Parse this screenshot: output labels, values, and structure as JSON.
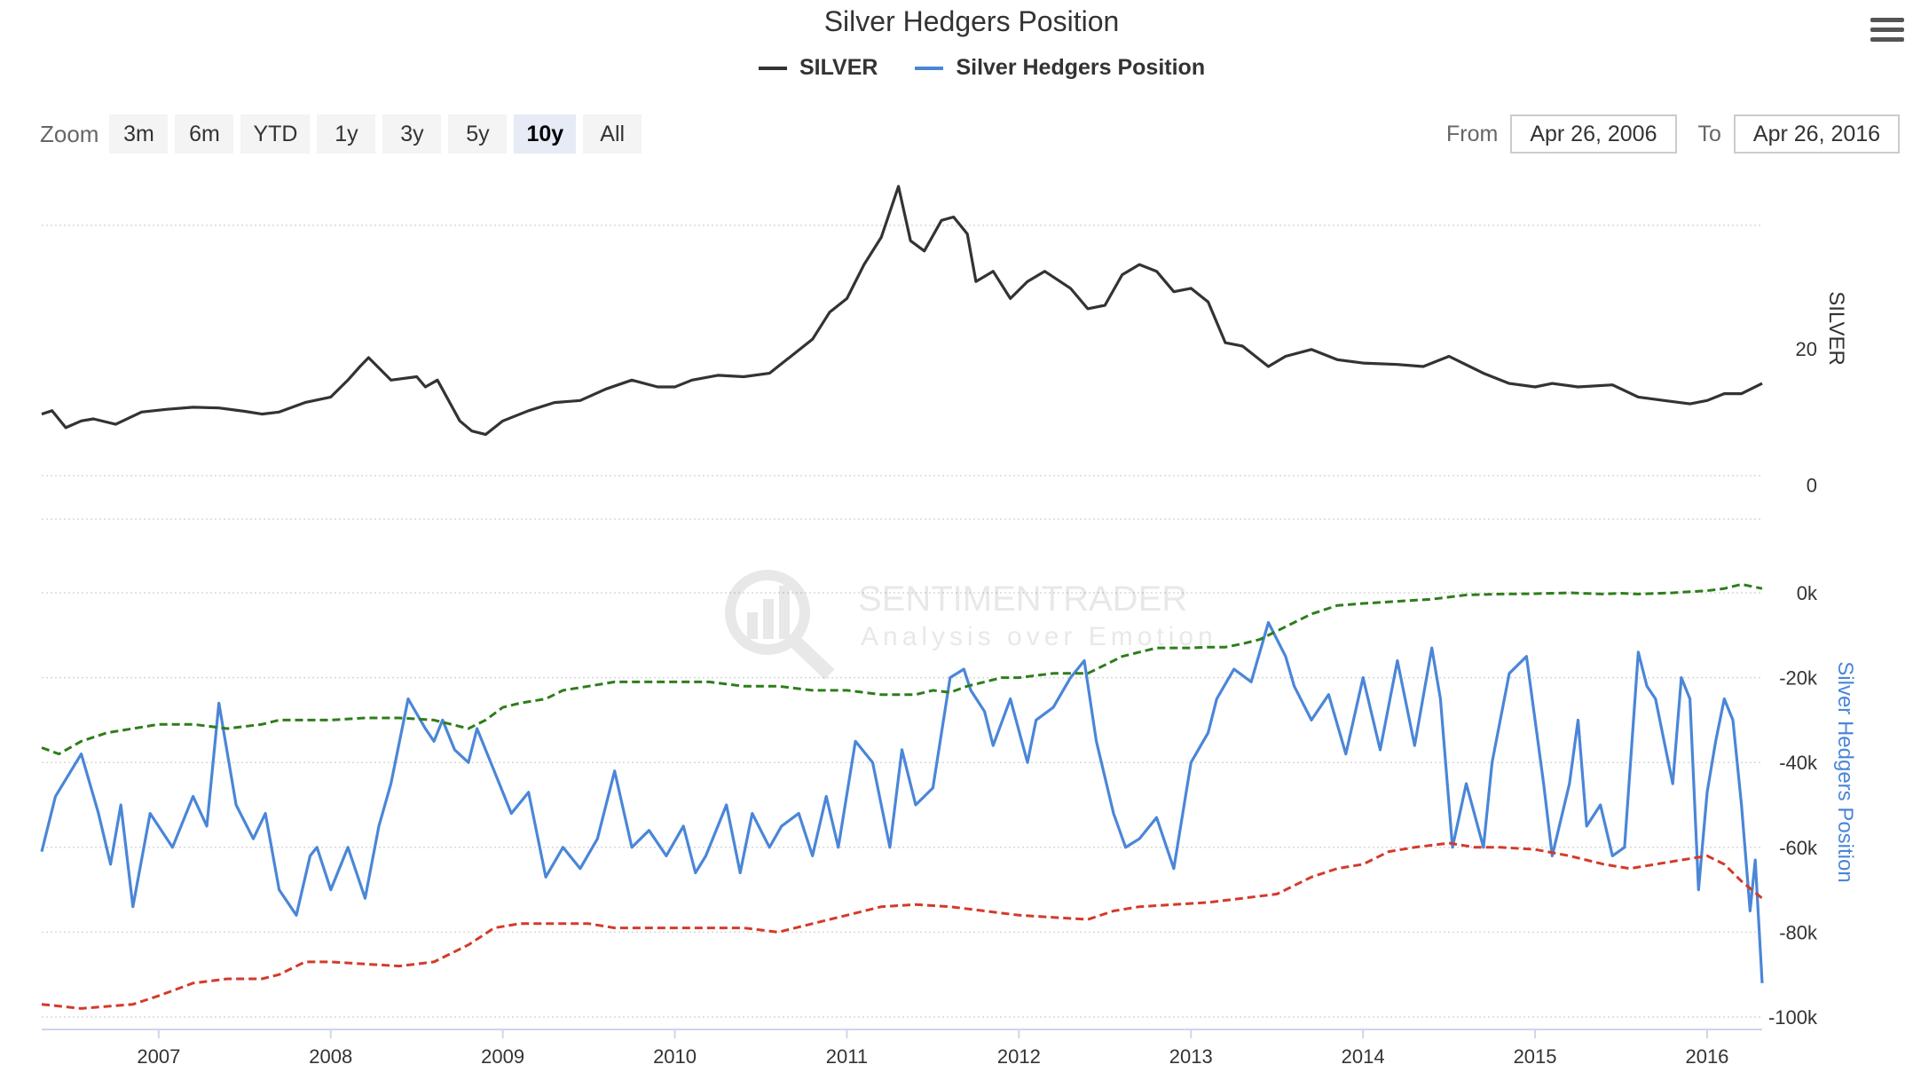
{
  "title": "Silver Hedgers Position",
  "legend": [
    {
      "label": "SILVER",
      "color": "#333333"
    },
    {
      "label": "Silver Hedgers Position",
      "color": "#4a86d8"
    }
  ],
  "zoom": {
    "label": "Zoom",
    "buttons": [
      "3m",
      "6m",
      "YTD",
      "1y",
      "3y",
      "5y",
      "10y",
      "All"
    ],
    "active": "10y"
  },
  "range": {
    "from_label": "From",
    "from_value": "Apr 26, 2006",
    "to_label": "To",
    "to_value": "Apr 26, 2016"
  },
  "watermark": {
    "brand": "SENTIMENTRADER",
    "tagline": "Analysis over Emotion"
  },
  "chart_data": [
    {
      "type": "line",
      "name": "silver-price-panel",
      "ylabel": "SILVER",
      "yticks": [
        0,
        20
      ],
      "ylim": [
        -1,
        46
      ],
      "xlim": [
        2006.32,
        2016.32
      ],
      "xticks": [
        "2007",
        "2008",
        "2009",
        "2010",
        "2011",
        "2012",
        "2013",
        "2014",
        "2015",
        "2016"
      ],
      "grid": true,
      "series": [
        {
          "name": "SILVER",
          "color": "#333333",
          "x": [
            2006.32,
            2006.38,
            2006.46,
            2006.55,
            2006.62,
            2006.75,
            2006.9,
            2007.05,
            2007.2,
            2007.35,
            2007.5,
            2007.6,
            2007.7,
            2007.85,
            2008.0,
            2008.1,
            2008.17,
            2008.22,
            2008.35,
            2008.5,
            2008.55,
            2008.62,
            2008.75,
            2008.82,
            2008.9,
            2009.0,
            2009.15,
            2009.3,
            2009.45,
            2009.6,
            2009.75,
            2009.9,
            2010.0,
            2010.1,
            2010.25,
            2010.4,
            2010.55,
            2010.65,
            2010.8,
            2010.9,
            2011.0,
            2011.1,
            2011.2,
            2011.3,
            2011.37,
            2011.45,
            2011.55,
            2011.62,
            2011.7,
            2011.75,
            2011.85,
            2011.95,
            2012.05,
            2012.15,
            2012.3,
            2012.4,
            2012.5,
            2012.6,
            2012.7,
            2012.8,
            2012.9,
            2013.0,
            2013.1,
            2013.2,
            2013.3,
            2013.45,
            2013.55,
            2013.7,
            2013.85,
            2014.0,
            2014.2,
            2014.35,
            2014.5,
            2014.7,
            2014.85,
            2015.0,
            2015.1,
            2015.25,
            2015.45,
            2015.6,
            2015.75,
            2015.9,
            2016.0,
            2016.1,
            2016.2,
            2016.32
          ],
          "y": [
            12.5,
            13.0,
            10.5,
            11.5,
            11.8,
            11.0,
            12.8,
            13.2,
            13.5,
            13.4,
            12.9,
            12.5,
            12.8,
            14.2,
            15.0,
            17.5,
            19.5,
            20.8,
            17.5,
            18.0,
            16.5,
            17.5,
            11.5,
            10.0,
            9.5,
            11.5,
            13.0,
            14.2,
            14.5,
            16.2,
            17.5,
            16.5,
            16.5,
            17.5,
            18.2,
            18.0,
            18.5,
            20.5,
            23.5,
            27.5,
            29.5,
            34.5,
            38.5,
            46.0,
            38.0,
            36.5,
            41.0,
            41.5,
            39.0,
            32.0,
            33.5,
            29.5,
            32.0,
            33.5,
            31.0,
            28.0,
            28.5,
            33.0,
            34.5,
            33.5,
            30.5,
            31.0,
            29.0,
            23.0,
            22.5,
            19.5,
            21.0,
            22.0,
            20.5,
            20.0,
            19.8,
            19.5,
            21.0,
            18.5,
            17.0,
            16.5,
            17.0,
            16.5,
            16.8,
            15.0,
            14.5,
            14.0,
            14.5,
            15.5,
            15.5,
            17.0
          ]
        }
      ]
    },
    {
      "type": "line",
      "name": "hedgers-panel",
      "ylabel": "Silver Hedgers Position",
      "yticks": [
        "0k",
        "-20k",
        "-40k",
        "-60k",
        "-80k",
        "-100k"
      ],
      "ylim": [
        -100000,
        0
      ],
      "xlim": [
        2006.32,
        2016.32
      ],
      "grid": true,
      "series": [
        {
          "name": "Silver Hedgers Position",
          "color": "#4a86d8",
          "x": [
            2006.32,
            2006.4,
            2006.55,
            2006.65,
            2006.72,
            2006.78,
            2006.85,
            2006.95,
            2007.08,
            2007.2,
            2007.28,
            2007.35,
            2007.45,
            2007.55,
            2007.62,
            2007.7,
            2007.8,
            2007.88,
            2007.92,
            2008.0,
            2008.1,
            2008.2,
            2008.28,
            2008.35,
            2008.45,
            2008.55,
            2008.6,
            2008.65,
            2008.72,
            2008.8,
            2008.85,
            2008.95,
            2009.05,
            2009.15,
            2009.25,
            2009.35,
            2009.45,
            2009.55,
            2009.65,
            2009.75,
            2009.85,
            2009.95,
            2010.05,
            2010.12,
            2010.18,
            2010.3,
            2010.38,
            2010.45,
            2010.55,
            2010.62,
            2010.72,
            2010.8,
            2010.88,
            2010.95,
            2011.05,
            2011.15,
            2011.25,
            2011.32,
            2011.4,
            2011.5,
            2011.6,
            2011.68,
            2011.72,
            2011.8,
            2011.85,
            2011.95,
            2012.05,
            2012.1,
            2012.2,
            2012.3,
            2012.38,
            2012.45,
            2012.55,
            2012.62,
            2012.7,
            2012.8,
            2012.9,
            2013.0,
            2013.1,
            2013.15,
            2013.25,
            2013.35,
            2013.45,
            2013.55,
            2013.6,
            2013.7,
            2013.8,
            2013.9,
            2014.0,
            2014.1,
            2014.2,
            2014.3,
            2014.4,
            2014.45,
            2014.52,
            2014.6,
            2014.7,
            2014.75,
            2014.85,
            2014.95,
            2015.05,
            2015.1,
            2015.2,
            2015.25,
            2015.3,
            2015.38,
            2015.45,
            2015.52,
            2015.6,
            2015.65,
            2015.7,
            2015.8,
            2015.85,
            2015.9,
            2015.95,
            2016.0,
            2016.05,
            2016.1,
            2016.15,
            2016.2,
            2016.25,
            2016.28,
            2016.32
          ],
          "y": [
            -61000,
            -48000,
            -38000,
            -52000,
            -64000,
            -50000,
            -74000,
            -52000,
            -60000,
            -48000,
            -55000,
            -26000,
            -50000,
            -58000,
            -52000,
            -70000,
            -76000,
            -62000,
            -60000,
            -70000,
            -60000,
            -72000,
            -55000,
            -45000,
            -25000,
            -32000,
            -35000,
            -30000,
            -37000,
            -40000,
            -32000,
            -42000,
            -52000,
            -47000,
            -67000,
            -60000,
            -65000,
            -58000,
            -42000,
            -60000,
            -56000,
            -62000,
            -55000,
            -66000,
            -62000,
            -50000,
            -66000,
            -52000,
            -60000,
            -55000,
            -52000,
            -62000,
            -48000,
            -60000,
            -35000,
            -40000,
            -60000,
            -37000,
            -50000,
            -46000,
            -20000,
            -18000,
            -23000,
            -28000,
            -36000,
            -25000,
            -40000,
            -30000,
            -27000,
            -20000,
            -16000,
            -35000,
            -52000,
            -60000,
            -58000,
            -53000,
            -65000,
            -40000,
            -33000,
            -25000,
            -18000,
            -21000,
            -7000,
            -15000,
            -22000,
            -30000,
            -24000,
            -38000,
            -20000,
            -37000,
            -16000,
            -36000,
            -13000,
            -25000,
            -60000,
            -45000,
            -60000,
            -40000,
            -19000,
            -15000,
            -45000,
            -62000,
            -45000,
            -30000,
            -55000,
            -50000,
            -62000,
            -60000,
            -14000,
            -22000,
            -25000,
            -45000,
            -20000,
            -25000,
            -70000,
            -47000,
            -35000,
            -25000,
            -30000,
            -50000,
            -75000,
            -63000,
            -92000
          ]
        },
        {
          "name": "",
          "color": "#2e7d1b",
          "dashed": true,
          "x": [
            2006.32,
            2006.42,
            2006.55,
            2006.7,
            2006.85,
            2007.0,
            2007.2,
            2007.4,
            2007.6,
            2007.7,
            2008.0,
            2008.2,
            2008.4,
            2008.6,
            2008.7,
            2008.8,
            2008.9,
            2009.0,
            2009.1,
            2009.25,
            2009.35,
            2009.5,
            2009.65,
            2009.8,
            2010.0,
            2010.2,
            2010.4,
            2010.6,
            2010.8,
            2011.0,
            2011.2,
            2011.4,
            2011.5,
            2011.6,
            2011.7,
            2011.8,
            2011.9,
            2012.0,
            2012.2,
            2012.4,
            2012.5,
            2012.6,
            2012.8,
            2013.0,
            2013.1,
            2013.2,
            2013.3,
            2013.4,
            2013.55,
            2013.7,
            2013.85,
            2014.0,
            2014.2,
            2014.4,
            2014.6,
            2014.8,
            2015.0,
            2015.2,
            2015.4,
            2015.5,
            2015.6,
            2015.8,
            2016.0,
            2016.1,
            2016.2,
            2016.32
          ],
          "y": [
            -36500,
            -38000,
            -35000,
            -33000,
            -32000,
            -31000,
            -31000,
            -32000,
            -31000,
            -30000,
            -30000,
            -29500,
            -29500,
            -30000,
            -31000,
            -32000,
            -30000,
            -27000,
            -26000,
            -25000,
            -23000,
            -22000,
            -21000,
            -21000,
            -21000,
            -21000,
            -22000,
            -22000,
            -23000,
            -23000,
            -24000,
            -24000,
            -23000,
            -23500,
            -22000,
            -21000,
            -20000,
            -20000,
            -19000,
            -19000,
            -17000,
            -15000,
            -13000,
            -13000,
            -12800,
            -12800,
            -12000,
            -11000,
            -8000,
            -5000,
            -3000,
            -2500,
            -2000,
            -1500,
            -500,
            -300,
            -200,
            0,
            -300,
            -100,
            -300,
            0,
            500,
            1000,
            2000,
            1000
          ]
        },
        {
          "name": "",
          "color": "#d43a2a",
          "dashed": true,
          "x": [
            2006.32,
            2006.55,
            2006.85,
            2007.0,
            2007.2,
            2007.4,
            2007.6,
            2007.7,
            2007.85,
            2008.0,
            2008.2,
            2008.4,
            2008.6,
            2008.8,
            2008.95,
            2009.1,
            2009.3,
            2009.5,
            2009.65,
            2009.8,
            2010.0,
            2010.2,
            2010.4,
            2010.6,
            2010.8,
            2011.0,
            2011.2,
            2011.4,
            2011.6,
            2011.8,
            2012.0,
            2012.2,
            2012.4,
            2012.55,
            2012.7,
            2012.9,
            2013.1,
            2013.3,
            2013.5,
            2013.7,
            2013.85,
            2014.0,
            2014.15,
            2014.3,
            2014.5,
            2014.65,
            2014.8,
            2015.0,
            2015.2,
            2015.4,
            2015.55,
            2015.7,
            2015.85,
            2016.0,
            2016.1,
            2016.2,
            2016.32
          ],
          "y": [
            -97000,
            -98000,
            -97000,
            -95000,
            -92000,
            -91000,
            -91000,
            -90000,
            -87000,
            -87000,
            -87500,
            -88000,
            -87000,
            -83000,
            -79000,
            -78000,
            -78000,
            -78000,
            -79000,
            -79000,
            -79000,
            -79000,
            -79000,
            -80000,
            -78000,
            -76000,
            -74000,
            -73500,
            -74000,
            -75000,
            -76000,
            -76500,
            -77000,
            -75000,
            -74000,
            -73500,
            -73000,
            -72000,
            -71000,
            -67000,
            -65000,
            -64000,
            -61000,
            -60000,
            -59000,
            -60000,
            -60000,
            -60500,
            -62000,
            -64000,
            -65000,
            -64000,
            -63000,
            -62000,
            -64000,
            -68000,
            -72000
          ]
        }
      ]
    },
    {
      "type": "axis",
      "name": "navigator-x-axis",
      "xticks": [
        "2007",
        "2008",
        "2009",
        "2010",
        "2011",
        "2012",
        "2013",
        "2014",
        "2015",
        "2016"
      ]
    }
  ]
}
